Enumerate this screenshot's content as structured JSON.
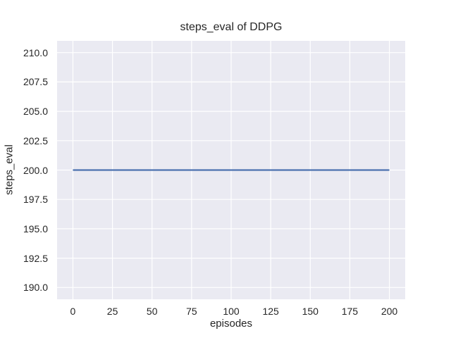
{
  "chart_data": {
    "type": "line",
    "title": "steps_eval of DDPG",
    "xlabel": "episodes",
    "ylabel": "steps_eval",
    "xlim": [
      -10,
      210
    ],
    "ylim": [
      189,
      211
    ],
    "xticks": [
      0,
      25,
      50,
      75,
      100,
      125,
      150,
      175,
      200
    ],
    "xtick_labels": [
      "0",
      "25",
      "50",
      "75",
      "100",
      "125",
      "150",
      "175",
      "200"
    ],
    "yticks": [
      190.0,
      192.5,
      195.0,
      197.5,
      200.0,
      202.5,
      205.0,
      207.5,
      210.0
    ],
    "ytick_labels": [
      "190.0",
      "192.5",
      "195.0",
      "197.5",
      "200.0",
      "202.5",
      "205.0",
      "207.5",
      "210.0"
    ],
    "grid": true,
    "legend": "none",
    "series": [
      {
        "name": "steps_eval",
        "color": "#4c72b0",
        "x": [
          0,
          200
        ],
        "y": [
          200,
          200
        ]
      }
    ],
    "styles": {
      "figure_bg": "#ffffff",
      "axes_bg": "#eaeaf2",
      "grid_color": "#ffffff",
      "text_color": "#262626"
    }
  }
}
